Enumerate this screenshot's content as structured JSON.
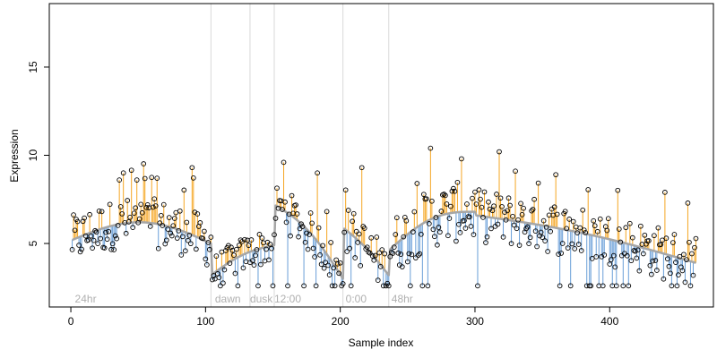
{
  "chart_data": {
    "type": "scatter",
    "xlabel": "Sample index",
    "ylabel": "Expression",
    "xlim": [
      -16,
      477
    ],
    "ylim": [
      1.4,
      18.6
    ],
    "xticks": [
      0,
      100,
      200,
      300,
      400
    ],
    "yticks": [
      5,
      10,
      15
    ],
    "baseline_label_shown": false,
    "colors": {
      "above": "#f5a623",
      "below": "#6a9fd8",
      "smooth": "#a6a6a6",
      "point_edge": "#000000",
      "divider": "#d9d9d9",
      "annotation": "#b0b0b0"
    },
    "dividers": [
      104,
      133,
      151,
      202,
      236
    ],
    "annotations": [
      {
        "x": 3,
        "label": "24hr"
      },
      {
        "x": 107,
        "label": "dawn"
      },
      {
        "x": 133,
        "label": "dusk"
      },
      {
        "x": 151,
        "label": "12:00"
      },
      {
        "x": 204,
        "label": "0:00"
      },
      {
        "x": 238,
        "label": "48hr"
      }
    ],
    "segments": [
      {
        "from": 1,
        "to": 104,
        "start": 5.2,
        "end": 5.0,
        "peak": 1.1,
        "spread": 1.4
      },
      {
        "from": 104,
        "to": 151,
        "start": 3.2,
        "end": 4.9,
        "peak": 0.3,
        "spread": 1.0
      },
      {
        "from": 151,
        "to": 202,
        "start": 7.2,
        "end": 3.0,
        "peak": 0.6,
        "spread": 1.2
      },
      {
        "from": 202,
        "to": 236,
        "start": 5.9,
        "end": 3.2,
        "peak": 0.2,
        "spread": 1.4
      },
      {
        "from": 236,
        "to": 300,
        "start": 4.6,
        "end": 6.8,
        "peak": 0.7,
        "spread": 1.7
      },
      {
        "from": 300,
        "to": 464,
        "start": 6.6,
        "end": 3.9,
        "peak": 0.3,
        "spread": 1.5
      }
    ],
    "n_points": 464,
    "floor_value": 2.6,
    "highlights": [
      {
        "x": 36,
        "y": 8.6
      },
      {
        "x": 49,
        "y": 8.6
      },
      {
        "x": 64,
        "y": 8.7
      },
      {
        "x": 90,
        "y": 9.3
      },
      {
        "x": 158,
        "y": 9.6
      },
      {
        "x": 183,
        "y": 9.0
      },
      {
        "x": 216,
        "y": 9.3
      },
      {
        "x": 257,
        "y": 8.4
      },
      {
        "x": 267,
        "y": 10.4
      },
      {
        "x": 290,
        "y": 9.8
      },
      {
        "x": 318,
        "y": 10.2
      },
      {
        "x": 360,
        "y": 8.9
      },
      {
        "x": 441,
        "y": 7.9
      }
    ]
  }
}
